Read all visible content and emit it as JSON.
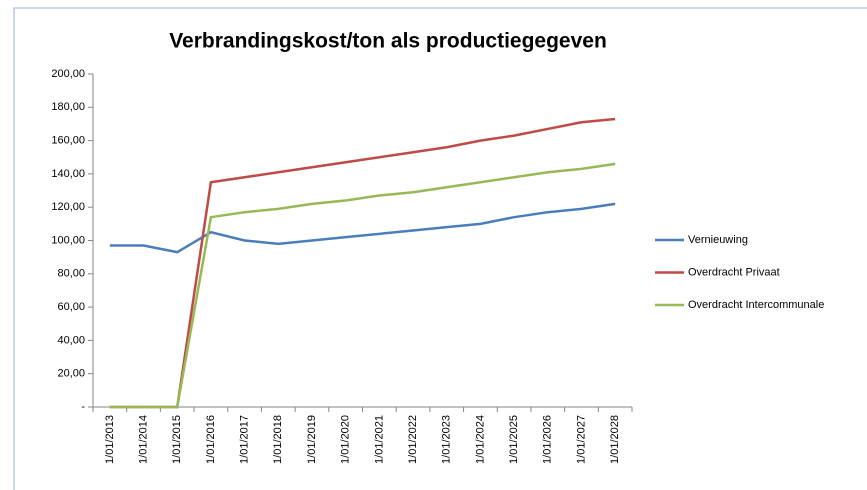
{
  "chart_data": {
    "type": "line",
    "title": "Verbrandingskost/ton als productiegegeven",
    "categories": [
      "1/01/2013",
      "1/01/2014",
      "1/01/2015",
      "1/01/2016",
      "1/01/2017",
      "1/01/2018",
      "1/01/2019",
      "1/01/2020",
      "1/01/2021",
      "1/01/2022",
      "1/01/2023",
      "1/01/2024",
      "1/01/2025",
      "1/01/2026",
      "1/01/2027",
      "1/01/2028"
    ],
    "series": [
      {
        "name": "Vernieuwing",
        "color": "#4a7ebb",
        "values": [
          97,
          97,
          93,
          105,
          100,
          98,
          100,
          102,
          104,
          106,
          108,
          110,
          114,
          117,
          119,
          122
        ]
      },
      {
        "name": "Overdracht Privaat",
        "color": "#be4b48",
        "values": [
          0,
          0,
          0,
          135,
          138,
          141,
          144,
          147,
          150,
          153,
          156,
          160,
          163,
          167,
          171,
          173
        ]
      },
      {
        "name": "Overdracht Intercommunale",
        "color": "#98b954",
        "values": [
          0,
          0,
          0,
          114,
          117,
          119,
          122,
          124,
          127,
          129,
          132,
          135,
          138,
          141,
          143,
          146
        ]
      }
    ],
    "ylim": [
      0,
      200
    ],
    "yticks": [
      {
        "value": 0,
        "label": "-"
      },
      {
        "value": 20,
        "label": "20,00"
      },
      {
        "value": 40,
        "label": "40,00"
      },
      {
        "value": 60,
        "label": "60,00"
      },
      {
        "value": 80,
        "label": "80,00"
      },
      {
        "value": 100,
        "label": "100,00"
      },
      {
        "value": 120,
        "label": "120,00"
      },
      {
        "value": 140,
        "label": "140,00"
      },
      {
        "value": 160,
        "label": "160,00"
      },
      {
        "value": 180,
        "label": "180,00"
      },
      {
        "value": 200,
        "label": "200,00"
      }
    ],
    "legend": "right",
    "grid": false
  }
}
